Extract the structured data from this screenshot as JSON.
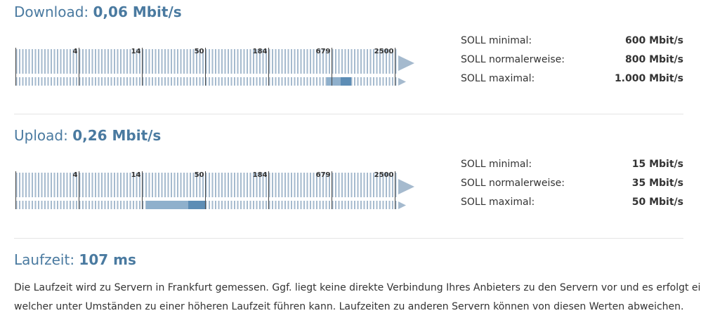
{
  "download": {
    "label": "Download:",
    "value": "0,06 Mbit/s",
    "scale": [
      "4",
      "14",
      "50",
      "184",
      "679",
      "2500"
    ],
    "targets": [
      {
        "label": "SOLL minimal:",
        "value": "600 Mbit/s"
      },
      {
        "label": "SOLL normalerweise:",
        "value": "800 Mbit/s"
      },
      {
        "label": "SOLL maximal:",
        "value": "1.000 Mbit/s"
      }
    ]
  },
  "upload": {
    "label": "Upload:",
    "value": "0,26 Mbit/s",
    "scale": [
      "4",
      "14",
      "50",
      "184",
      "679",
      "2500"
    ],
    "targets": [
      {
        "label": "SOLL minimal:",
        "value": "15 Mbit/s"
      },
      {
        "label": "SOLL normalerweise:",
        "value": "35 Mbit/s"
      },
      {
        "label": "SOLL maximal:",
        "value": "50 Mbit/s"
      }
    ]
  },
  "latency": {
    "label": "Laufzeit:",
    "value": "107 ms",
    "paragraph": [
      "Die Laufzeit wird zu Servern in Frankfurt gemessen. Ggf. liegt keine direkte Verbindung Ihres Anbieters zu den Servern vor und es erfolgt ein Transit,",
      "welcher unter Umständen zu einer höheren Laufzeit führen kann. Laufzeiten zu anderen Servern können von diesen Werten abweichen."
    ]
  }
}
